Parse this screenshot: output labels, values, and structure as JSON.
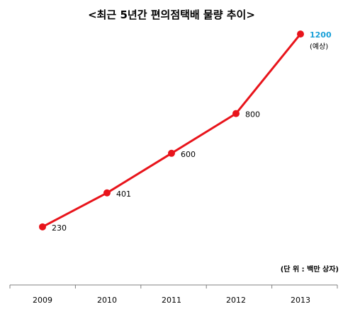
{
  "chart_data": {
    "type": "line",
    "title": "<최근 5년간 편의점택배 물량 추이>",
    "unit": "(단 위 : 백만 상자)",
    "categories": [
      "2009",
      "2010",
      "2011",
      "2012",
      "2013"
    ],
    "values": [
      230,
      401,
      600,
      800,
      1200
    ],
    "value_labels": [
      "230",
      "401",
      "600",
      "800",
      "1200"
    ],
    "notes": [
      "",
      "",
      "",
      "",
      "(예상)"
    ],
    "ylim": [
      0,
      1300
    ],
    "grid": false,
    "colors": {
      "line": "#e8141b",
      "marker": "#e8141b",
      "highlight_label": "#1aa0d8",
      "axis": "#808080"
    }
  }
}
